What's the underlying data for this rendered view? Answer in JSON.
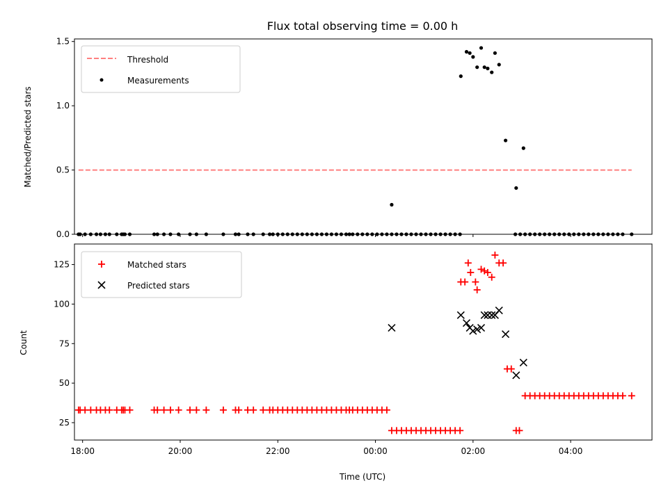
{
  "chart_data": [
    {
      "type": "scatter",
      "title": "Flux total observing time = 0.00 h",
      "ylabel": "Matched/Predicted stars",
      "xlabel": "",
      "xlim": [
        "17:50",
        "05:40"
      ],
      "ylim": [
        0,
        1.52
      ],
      "x_ticks": [
        "18:00",
        "20:00",
        "22:00",
        "00:00",
        "02:00",
        "04:00"
      ],
      "y_ticks": [
        0.0,
        0.5,
        1.0,
        1.5
      ],
      "y_tick_labels": [
        "0.0",
        "0.5",
        "1.0",
        "1.5"
      ],
      "grid": false,
      "legend_position": "top-left",
      "threshold": {
        "name": "Threshold",
        "color": "#ff7f7f",
        "y": 0.5,
        "x_range": [
          "17:55",
          "05:15"
        ]
      },
      "series": [
        {
          "name": "Measurements",
          "color": "#000000",
          "marker": "dot",
          "points": [
            [
              "17:55",
              0
            ],
            [
              "17:57",
              0
            ],
            [
              "18:03",
              0
            ],
            [
              "18:10",
              0
            ],
            [
              "18:17",
              0
            ],
            [
              "18:22",
              0
            ],
            [
              "18:28",
              0
            ],
            [
              "18:33",
              0
            ],
            [
              "18:42",
              0
            ],
            [
              "18:48",
              0
            ],
            [
              "18:50",
              0
            ],
            [
              "18:52",
              0
            ],
            [
              "18:58",
              0
            ],
            [
              "19:28",
              0
            ],
            [
              "19:32",
              0
            ],
            [
              "19:40",
              0
            ],
            [
              "19:48",
              0
            ],
            [
              "19:58",
              0
            ],
            [
              "20:12",
              0
            ],
            [
              "20:20",
              0
            ],
            [
              "20:32",
              0
            ],
            [
              "20:53",
              0
            ],
            [
              "21:08",
              0
            ],
            [
              "21:12",
              0
            ],
            [
              "21:23",
              0
            ],
            [
              "21:30",
              0
            ],
            [
              "21:42",
              0
            ],
            [
              "21:50",
              0
            ],
            [
              "21:54",
              0
            ],
            [
              "22:00",
              0
            ],
            [
              "22:06",
              0
            ],
            [
              "22:12",
              0
            ],
            [
              "22:18",
              0
            ],
            [
              "22:24",
              0
            ],
            [
              "22:30",
              0
            ],
            [
              "22:36",
              0
            ],
            [
              "22:42",
              0
            ],
            [
              "22:48",
              0
            ],
            [
              "22:54",
              0
            ],
            [
              "23:00",
              0
            ],
            [
              "23:06",
              0
            ],
            [
              "23:12",
              0
            ],
            [
              "23:18",
              0
            ],
            [
              "23:24",
              0
            ],
            [
              "23:28",
              0
            ],
            [
              "23:32",
              0
            ],
            [
              "23:38",
              0
            ],
            [
              "23:44",
              0
            ],
            [
              "23:50",
              0
            ],
            [
              "23:56",
              0
            ],
            [
              "00:02",
              0
            ],
            [
              "00:08",
              0
            ],
            [
              "00:14",
              0
            ],
            [
              "00:20",
              0
            ],
            [
              "00:26",
              0
            ],
            [
              "00:32",
              0
            ],
            [
              "00:38",
              0
            ],
            [
              "00:44",
              0
            ],
            [
              "00:50",
              0
            ],
            [
              "00:56",
              0
            ],
            [
              "01:02",
              0
            ],
            [
              "01:08",
              0
            ],
            [
              "01:14",
              0
            ],
            [
              "01:20",
              0
            ],
            [
              "01:26",
              0
            ],
            [
              "01:32",
              0
            ],
            [
              "01:38",
              0
            ],
            [
              "01:44",
              0
            ],
            [
              "02:52",
              0
            ],
            [
              "02:58",
              0
            ],
            [
              "03:04",
              0
            ],
            [
              "03:10",
              0
            ],
            [
              "03:16",
              0
            ],
            [
              "03:22",
              0
            ],
            [
              "03:28",
              0
            ],
            [
              "03:34",
              0
            ],
            [
              "03:40",
              0
            ],
            [
              "03:46",
              0
            ],
            [
              "03:52",
              0
            ],
            [
              "03:58",
              0
            ],
            [
              "04:04",
              0
            ],
            [
              "04:10",
              0
            ],
            [
              "04:16",
              0
            ],
            [
              "04:22",
              0
            ],
            [
              "04:28",
              0
            ],
            [
              "04:34",
              0
            ],
            [
              "04:40",
              0
            ],
            [
              "04:46",
              0
            ],
            [
              "04:52",
              0
            ],
            [
              "04:58",
              0
            ],
            [
              "05:04",
              0
            ],
            [
              "05:15",
              0
            ],
            [
              "00:20",
              0.23
            ],
            [
              "01:45",
              1.23
            ],
            [
              "01:52",
              1.42
            ],
            [
              "01:56",
              1.41
            ],
            [
              "02:00",
              1.38
            ],
            [
              "02:05",
              1.3
            ],
            [
              "02:10",
              1.45
            ],
            [
              "02:14",
              1.3
            ],
            [
              "02:18",
              1.29
            ],
            [
              "02:23",
              1.26
            ],
            [
              "02:27",
              1.41
            ],
            [
              "02:32",
              1.32
            ],
            [
              "02:40",
              0.73
            ],
            [
              "02:53",
              0.36
            ],
            [
              "03:02",
              0.67
            ]
          ]
        }
      ]
    },
    {
      "type": "scatter",
      "title": "",
      "ylabel": "Count",
      "xlabel": "Time (UTC)",
      "xlim": [
        "17:50",
        "05:40"
      ],
      "ylim": [
        14,
        138
      ],
      "x_ticks": [
        "18:00",
        "20:00",
        "22:00",
        "00:00",
        "02:00",
        "04:00"
      ],
      "y_ticks": [
        25,
        50,
        75,
        100,
        125
      ],
      "grid": false,
      "legend_position": "top-left",
      "series": [
        {
          "name": "Matched stars",
          "color": "#ff0000",
          "marker": "plus",
          "points": [
            [
              "17:55",
              33
            ],
            [
              "17:57",
              33
            ],
            [
              "18:03",
              33
            ],
            [
              "18:10",
              33
            ],
            [
              "18:17",
              33
            ],
            [
              "18:22",
              33
            ],
            [
              "18:28",
              33
            ],
            [
              "18:33",
              33
            ],
            [
              "18:42",
              33
            ],
            [
              "18:48",
              33
            ],
            [
              "18:50",
              33
            ],
            [
              "18:52",
              33
            ],
            [
              "18:58",
              33
            ],
            [
              "19:28",
              33
            ],
            [
              "19:32",
              33
            ],
            [
              "19:40",
              33
            ],
            [
              "19:48",
              33
            ],
            [
              "19:58",
              33
            ],
            [
              "20:12",
              33
            ],
            [
              "20:20",
              33
            ],
            [
              "20:32",
              33
            ],
            [
              "20:53",
              33
            ],
            [
              "21:08",
              33
            ],
            [
              "21:12",
              33
            ],
            [
              "21:23",
              33
            ],
            [
              "21:30",
              33
            ],
            [
              "21:42",
              33
            ],
            [
              "21:50",
              33
            ],
            [
              "21:54",
              33
            ],
            [
              "22:00",
              33
            ],
            [
              "22:06",
              33
            ],
            [
              "22:12",
              33
            ],
            [
              "22:18",
              33
            ],
            [
              "22:24",
              33
            ],
            [
              "22:30",
              33
            ],
            [
              "22:36",
              33
            ],
            [
              "22:42",
              33
            ],
            [
              "22:48",
              33
            ],
            [
              "22:54",
              33
            ],
            [
              "23:00",
              33
            ],
            [
              "23:06",
              33
            ],
            [
              "23:12",
              33
            ],
            [
              "23:18",
              33
            ],
            [
              "23:24",
              33
            ],
            [
              "23:28",
              33
            ],
            [
              "23:32",
              33
            ],
            [
              "23:38",
              33
            ],
            [
              "23:44",
              33
            ],
            [
              "23:50",
              33
            ],
            [
              "23:56",
              33
            ],
            [
              "00:02",
              33
            ],
            [
              "00:08",
              33
            ],
            [
              "00:14",
              33
            ],
            [
              "00:20",
              20
            ],
            [
              "00:26",
              20
            ],
            [
              "00:32",
              20
            ],
            [
              "00:38",
              20
            ],
            [
              "00:44",
              20
            ],
            [
              "00:50",
              20
            ],
            [
              "00:56",
              20
            ],
            [
              "01:02",
              20
            ],
            [
              "01:08",
              20
            ],
            [
              "01:14",
              20
            ],
            [
              "01:20",
              20
            ],
            [
              "01:26",
              20
            ],
            [
              "01:32",
              20
            ],
            [
              "01:38",
              20
            ],
            [
              "01:44",
              20
            ],
            [
              "02:53",
              20
            ],
            [
              "02:57",
              20
            ],
            [
              "01:45",
              114
            ],
            [
              "01:50",
              114
            ],
            [
              "01:54",
              126
            ],
            [
              "01:57",
              120
            ],
            [
              "02:03",
              114
            ],
            [
              "02:05",
              109
            ],
            [
              "02:10",
              122
            ],
            [
              "02:14",
              121
            ],
            [
              "02:18",
              120
            ],
            [
              "02:23",
              117
            ],
            [
              "02:27",
              131
            ],
            [
              "02:32",
              126
            ],
            [
              "02:37",
              126
            ],
            [
              "02:42",
              59
            ],
            [
              "02:47",
              59
            ],
            [
              "03:04",
              42
            ],
            [
              "03:10",
              42
            ],
            [
              "03:16",
              42
            ],
            [
              "03:22",
              42
            ],
            [
              "03:28",
              42
            ],
            [
              "03:34",
              42
            ],
            [
              "03:40",
              42
            ],
            [
              "03:46",
              42
            ],
            [
              "03:52",
              42
            ],
            [
              "03:58",
              42
            ],
            [
              "04:04",
              42
            ],
            [
              "04:10",
              42
            ],
            [
              "04:16",
              42
            ],
            [
              "04:22",
              42
            ],
            [
              "04:28",
              42
            ],
            [
              "04:34",
              42
            ],
            [
              "04:40",
              42
            ],
            [
              "04:46",
              42
            ],
            [
              "04:52",
              42
            ],
            [
              "04:58",
              42
            ],
            [
              "05:04",
              42
            ],
            [
              "05:15",
              42
            ]
          ]
        },
        {
          "name": "Predicted stars",
          "color": "#000000",
          "marker": "x",
          "points": [
            [
              "00:20",
              85
            ],
            [
              "01:45",
              93
            ],
            [
              "01:52",
              88
            ],
            [
              "01:56",
              85
            ],
            [
              "02:00",
              83
            ],
            [
              "02:05",
              84
            ],
            [
              "02:10",
              85
            ],
            [
              "02:14",
              93
            ],
            [
              "02:18",
              93
            ],
            [
              "02:23",
              93
            ],
            [
              "02:27",
              93
            ],
            [
              "02:32",
              96
            ],
            [
              "02:40",
              81
            ],
            [
              "02:53",
              55
            ],
            [
              "03:02",
              63
            ]
          ]
        }
      ]
    }
  ]
}
